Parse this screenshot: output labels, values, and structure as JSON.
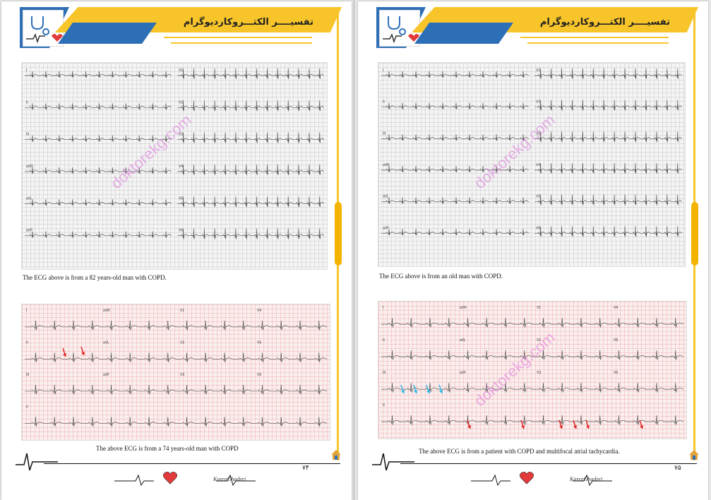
{
  "header": {
    "title": "تفسیــــر الکتـــروکاردیوگرام",
    "author": "کسری قادری"
  },
  "watermark": "doktorekg.com",
  "footer_signature": "KasraGhaderi",
  "pages": [
    {
      "page_number": "۷۴",
      "top_caption": "The ECG above is from a 82 years-old man with COPD.",
      "bottom_caption": "The above ECG is from a 74 years-old man with COPD",
      "top_ecg_leads": [
        "I",
        "II",
        "III",
        "aVR",
        "aVL",
        "aVF",
        "V1",
        "V2",
        "V3",
        "V4",
        "V5",
        "V6"
      ],
      "bottom_ecg_leads": [
        "I",
        "aVR",
        "V1",
        "V4",
        "II",
        "aVL",
        "V2",
        "V5",
        "III",
        "aVF",
        "V3",
        "V6",
        "II"
      ]
    },
    {
      "page_number": "۷۵",
      "top_caption": "The ECG above is from an old man with COPD.",
      "bottom_caption": "The above ECG is from a patient with COPD and multifocal atrial tachycardia.",
      "top_ecg_leads": [
        "I",
        "II",
        "III",
        "aVR",
        "aVL",
        "aVF",
        "V1",
        "V2",
        "V3",
        "V4",
        "V5",
        "V6"
      ],
      "bottom_ecg_leads": [
        "I",
        "aVR",
        "V1",
        "V4",
        "II",
        "aVL",
        "V2",
        "V5",
        "III",
        "aVF",
        "V3",
        "V6",
        "II"
      ]
    }
  ],
  "colors": {
    "accent_yellow": "#f7c52a",
    "accent_blue": "#2d6fb7",
    "arrow_red": "#e02020",
    "arrow_cyan": "#2ab8e8",
    "heart_red": "#e23a3a"
  }
}
